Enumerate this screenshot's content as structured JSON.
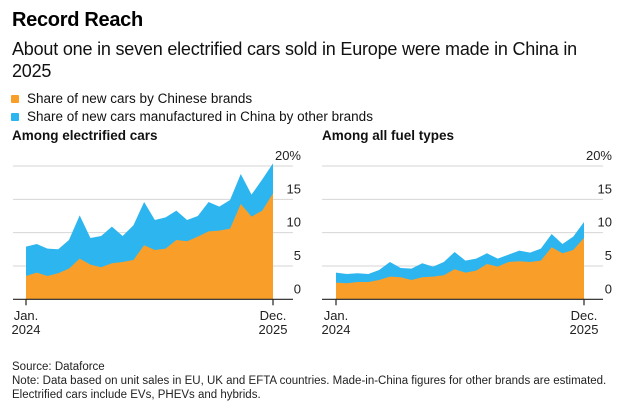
{
  "title": "Record Reach",
  "subtitle": "About one in seven electrified cars sold in Europe were made in China in 2025",
  "legend": [
    {
      "label": "Share of new cars by Chinese brands",
      "color": "#F99F29"
    },
    {
      "label": "Share of new cars manufactured in China by other brands",
      "color": "#2DB5EF"
    }
  ],
  "footer": {
    "source": "Source: Dataforce",
    "note": "Note: Data based on unit sales in EU, UK and EFTA countries. Made-in-China figures for other brands are estimated. Electrified cars include EVs, PHEVs and hybrids."
  },
  "chart_data": [
    {
      "type": "area",
      "stacked": false,
      "title": "Among electrified cars",
      "x_start": "Jan. 2024",
      "x_end": "Dec. 2025",
      "x_tick_labels": [
        [
          "Jan.",
          "2024"
        ],
        [
          "Dec.",
          "2025"
        ]
      ],
      "y_tick_labels": [
        "0",
        "5",
        "10",
        "15",
        "20%"
      ],
      "y_ticks": [
        0,
        5,
        10,
        15,
        20
      ],
      "ylim": [
        0,
        20
      ],
      "grid": true,
      "y_axis_side": "right",
      "series": [
        {
          "name": "Share of new cars manufactured in China by other brands (total made in China, top of stack)",
          "color": "#2DB5EF",
          "values": [
            7.9,
            8.3,
            7.6,
            7.5,
            8.9,
            12.6,
            9.2,
            9.5,
            10.9,
            9.5,
            11.1,
            14.6,
            11.9,
            12.3,
            13.3,
            11.9,
            12.5,
            14.6,
            13.9,
            14.9,
            18.8,
            15.7,
            18.0,
            20.4
          ]
        },
        {
          "name": "Share of new cars by Chinese brands",
          "color": "#F99F29",
          "values": [
            3.5,
            4.0,
            3.5,
            3.9,
            4.6,
            6.1,
            5.2,
            4.8,
            5.4,
            5.6,
            5.9,
            8.1,
            7.4,
            7.6,
            8.9,
            8.7,
            9.4,
            10.2,
            10.3,
            10.6,
            14.3,
            12.4,
            13.3,
            15.9
          ]
        }
      ]
    },
    {
      "type": "area",
      "stacked": false,
      "title": "Among all fuel types",
      "x_start": "Jan. 2024",
      "x_end": "Dec. 2025",
      "x_tick_labels": [
        [
          "Jan.",
          "2024"
        ],
        [
          "Dec.",
          "2025"
        ]
      ],
      "y_tick_labels": [
        "0",
        "5",
        "10",
        "15",
        "20%"
      ],
      "y_ticks": [
        0,
        5,
        10,
        15,
        20
      ],
      "ylim": [
        0,
        20
      ],
      "grid": true,
      "y_axis_side": "right",
      "series": [
        {
          "name": "Share of new cars manufactured in China by other brands (total made in China, top of stack)",
          "color": "#2DB5EF",
          "values": [
            4.0,
            3.8,
            3.9,
            3.8,
            4.4,
            5.6,
            4.7,
            4.6,
            5.4,
            4.9,
            5.6,
            7.1,
            5.8,
            6.1,
            6.9,
            6.1,
            6.7,
            7.3,
            7.0,
            7.6,
            9.8,
            8.3,
            9.4,
            11.6
          ]
        },
        {
          "name": "Share of new cars by Chinese brands",
          "color": "#F99F29",
          "values": [
            2.5,
            2.4,
            2.6,
            2.6,
            2.9,
            3.4,
            3.3,
            2.9,
            3.3,
            3.4,
            3.6,
            4.5,
            4.0,
            4.3,
            5.3,
            4.9,
            5.6,
            5.7,
            5.6,
            5.8,
            7.8,
            6.9,
            7.4,
            9.2
          ]
        }
      ]
    }
  ]
}
